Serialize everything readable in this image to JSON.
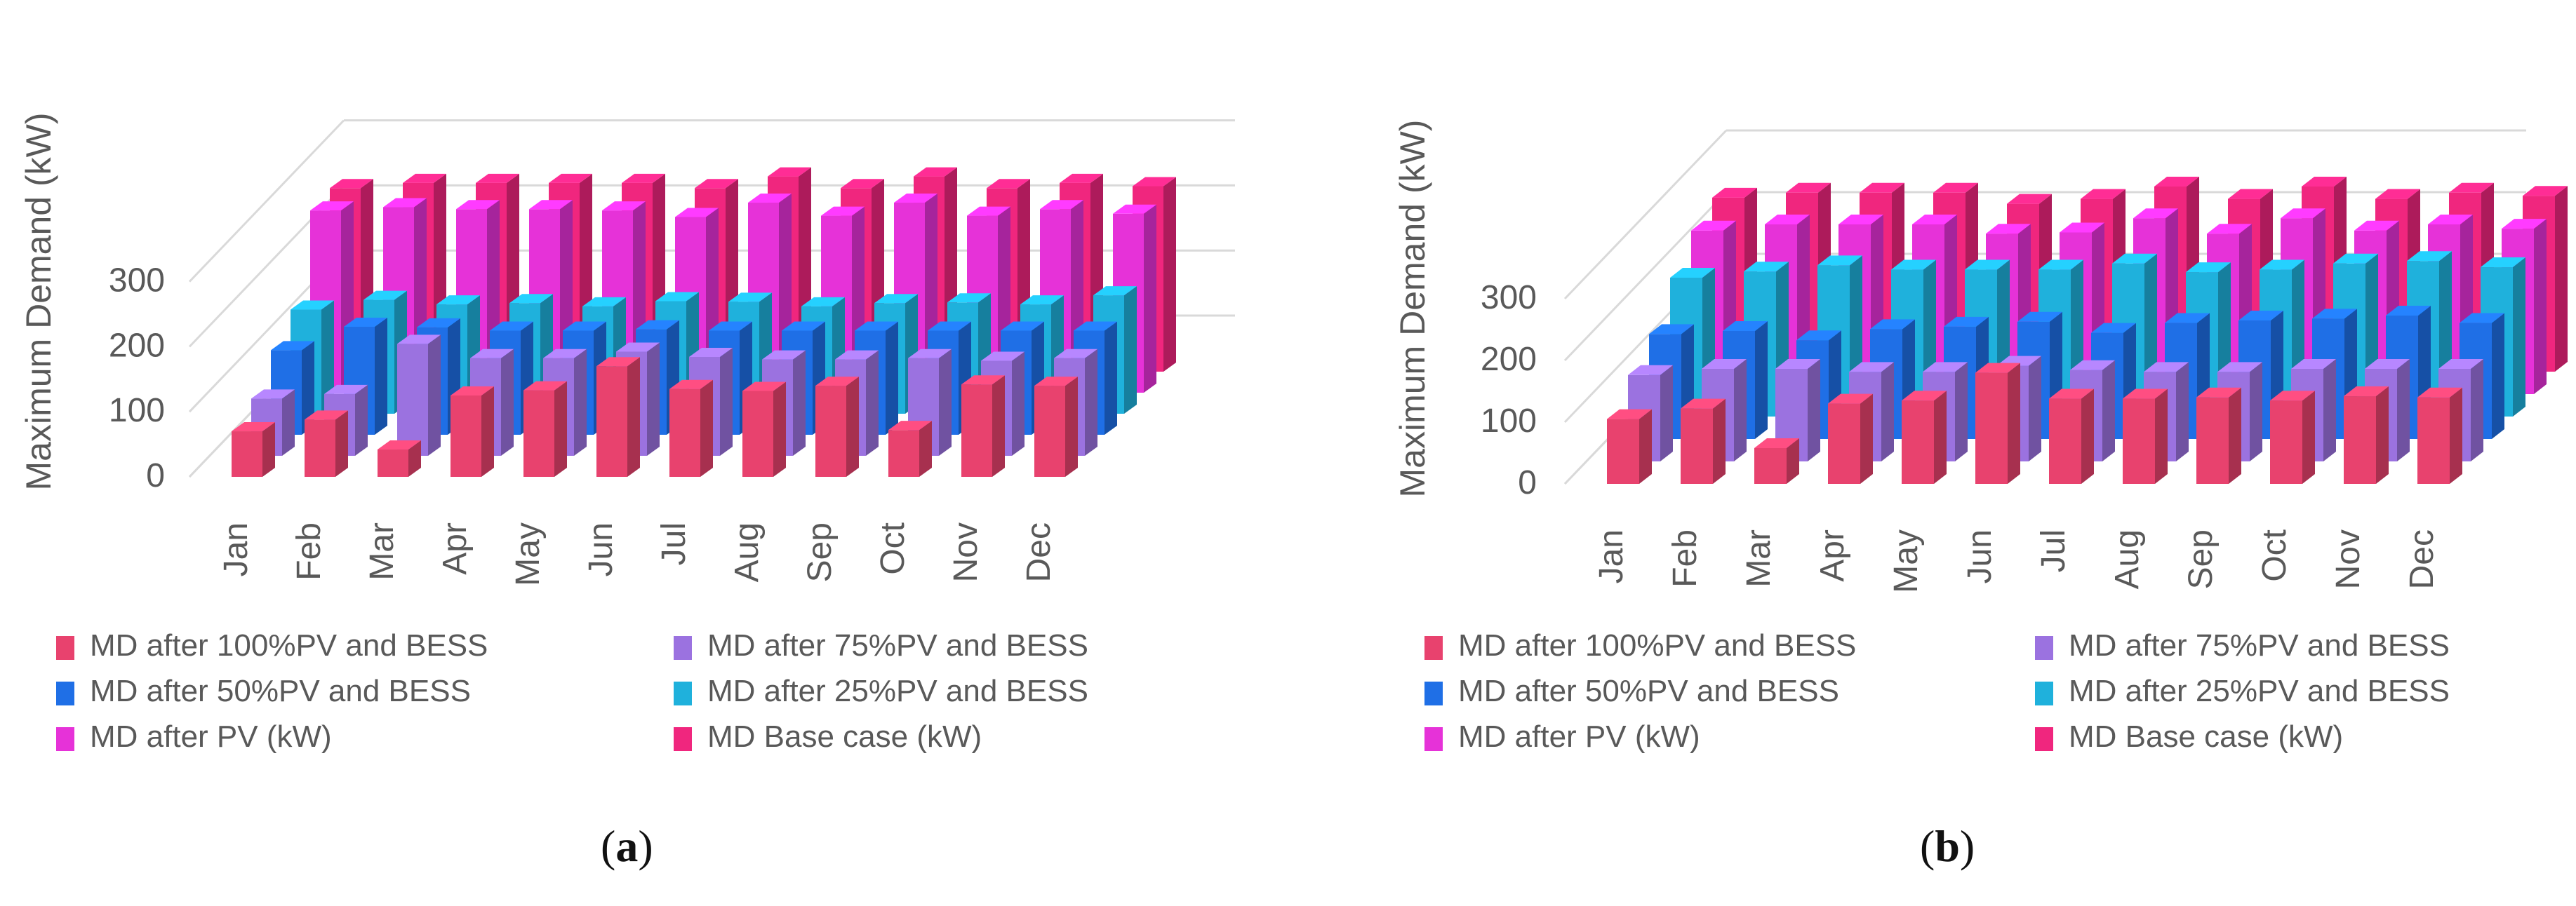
{
  "figure": {
    "panels": [
      {
        "label_prefix": "(",
        "label_letter": "a",
        "label_suffix": ")"
      },
      {
        "label_prefix": "(",
        "label_letter": "b",
        "label_suffix": ")"
      }
    ]
  },
  "chart_data": [
    {
      "type": "bar",
      "style": "3d-clustered",
      "title": "",
      "xlabel": "",
      "ylabel": "Maximum Demand (kW)",
      "ylim": [
        0,
        300
      ],
      "yticks": [
        0,
        100,
        200,
        300
      ],
      "grid": true,
      "legend_position": "bottom",
      "categories": [
        "Jan",
        "Feb",
        "Mar",
        "Apr",
        "May",
        "Jun",
        "Jul",
        "Aug",
        "Sep",
        "Oct",
        "Nov",
        "Dec"
      ],
      "series": [
        {
          "name": "MD after 100%PV and BESS",
          "color": "#e8426e",
          "values": [
            70,
            88,
            42,
            125,
            133,
            170,
            135,
            132,
            140,
            72,
            142,
            140
          ]
        },
        {
          "name": "MD after 75%PV and BESS",
          "color": "#9b72e0",
          "values": [
            88,
            95,
            172,
            150,
            150,
            160,
            152,
            148,
            148,
            150,
            146,
            150
          ]
        },
        {
          "name": "MD after 50%PV and BESS",
          "color": "#1f6fe6",
          "values": [
            130,
            166,
            165,
            160,
            160,
            162,
            160,
            160,
            160,
            160,
            160,
            160
          ]
        },
        {
          "name": "MD after 25%PV and BESS",
          "color": "#1fb1dc",
          "values": [
            160,
            175,
            168,
            170,
            165,
            173,
            172,
            165,
            170,
            171,
            168,
            182
          ]
        },
        {
          "name": "MD after PV (kW)",
          "color": "#e632d8",
          "values": [
            280,
            285,
            282,
            282,
            280,
            270,
            292,
            272,
            292,
            272,
            282,
            275
          ]
        },
        {
          "name": "MD Base case (kW)",
          "color": "#f0267e",
          "values": [
            282,
            290,
            290,
            290,
            290,
            282,
            300,
            282,
            300,
            282,
            290,
            285
          ]
        }
      ]
    },
    {
      "type": "bar",
      "style": "3d-clustered",
      "title": "",
      "xlabel": "",
      "ylabel": "Maximum Demand (kW)",
      "ylim": [
        0,
        300
      ],
      "yticks": [
        0,
        100,
        200,
        300
      ],
      "grid": true,
      "legend_position": "bottom",
      "categories": [
        "Jan",
        "Feb",
        "Mar",
        "Apr",
        "May",
        "Jun",
        "Jul",
        "Aug",
        "Sep",
        "Oct",
        "Nov",
        "Dec"
      ],
      "series": [
        {
          "name": "MD after 100%PV and BESS",
          "color": "#e8426e",
          "values": [
            105,
            122,
            58,
            130,
            135,
            180,
            138,
            138,
            140,
            135,
            142,
            140
          ]
        },
        {
          "name": "MD after 75%PV and BESS",
          "color": "#9b72e0",
          "values": [
            140,
            150,
            150,
            145,
            145,
            155,
            148,
            145,
            145,
            150,
            150,
            150
          ]
        },
        {
          "name": "MD after 50%PV and BESS",
          "color": "#1f6fe6",
          "values": [
            170,
            175,
            160,
            178,
            182,
            190,
            172,
            188,
            192,
            195,
            200,
            188
          ]
        },
        {
          "name": "MD after 25%PV and BESS",
          "color": "#1fb1dc",
          "values": [
            225,
            235,
            245,
            238,
            238,
            238,
            248,
            234,
            238,
            248,
            252,
            242
          ]
        },
        {
          "name": "MD after PV (kW)",
          "color": "#e632d8",
          "values": [
            265,
            275,
            275,
            275,
            260,
            262,
            285,
            260,
            285,
            265,
            275,
            268
          ]
        },
        {
          "name": "MD Base case (kW)",
          "color": "#f0267e",
          "values": [
            282,
            290,
            290,
            290,
            272,
            280,
            300,
            280,
            300,
            280,
            290,
            285
          ]
        }
      ]
    }
  ]
}
